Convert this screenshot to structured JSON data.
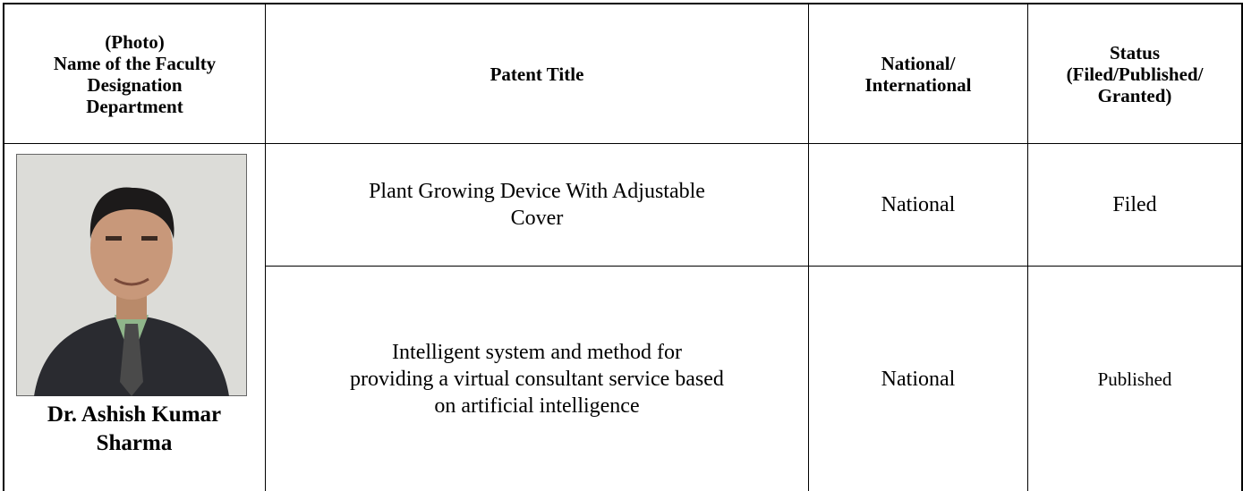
{
  "table": {
    "header": [
      [
        "(Photo)",
        "Name of the Faculty",
        "Designation",
        "Department"
      ],
      [
        "Patent Title"
      ],
      [
        "National/",
        "International"
      ],
      [
        "Status",
        "(Filed/Published/",
        "Granted)"
      ]
    ],
    "faculty": {
      "name": [
        "Dr. Ashish Kumar",
        "Sharma"
      ]
    },
    "rows": [
      [
        [
          "Plant Growing Device With Adjustable",
          "Cover"
        ],
        [
          "National"
        ],
        [
          "Filed"
        ]
      ],
      [
        [
          "Intelligent system and method for",
          "providing a virtual consultant service based",
          "on artificial intelligence"
        ],
        [
          "National"
        ],
        [
          "Published"
        ]
      ]
    ]
  }
}
